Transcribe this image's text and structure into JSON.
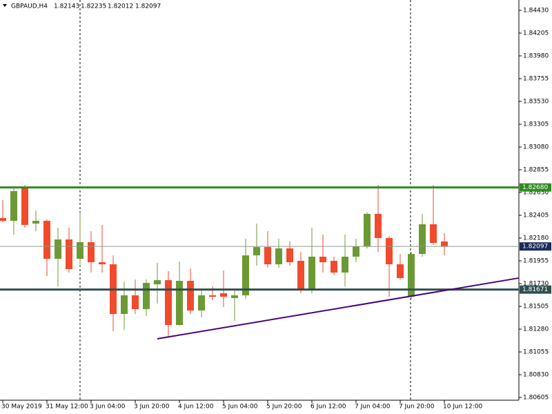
{
  "chart_data": {
    "type": "candlestick",
    "symbol": "GBPAUD,H4",
    "header_values": [
      1.82143,
      1.82235,
      1.82012,
      1.82097
    ],
    "up_color": "#6b9a35",
    "down_color": "#f24a2c",
    "categories": [
      "30 May 2019",
      null,
      null,
      null,
      "31 May 12:00",
      null,
      null,
      null,
      "3 Jun 04:00",
      null,
      null,
      null,
      "3 Jun 20:00",
      null,
      null,
      null,
      "4 Jun 12:00",
      null,
      null,
      null,
      "5 Jun 04:00",
      null,
      null,
      null,
      "5 Jun 20:00",
      null,
      null,
      null,
      "6 Jun 12:00",
      null,
      null,
      null,
      "7 Jun 04:00",
      null,
      null,
      null,
      "7 Jun 20:00",
      null,
      null,
      null,
      "10 Jun 12:00"
    ],
    "open": [
      1.82378,
      1.8235,
      1.82678,
      1.82323,
      1.8235,
      1.81975,
      1.82166,
      1.81975,
      1.82139,
      1.81941,
      1.81921,
      1.8143,
      1.81614,
      1.81478,
      1.81723,
      1.81764,
      1.81321,
      1.81757,
      1.81464,
      1.81614,
      1.81635,
      1.81587,
      1.81614,
      1.82009,
      1.82091,
      1.81921,
      1.82078,
      1.81955,
      1.81669,
      1.81996,
      1.81955,
      1.81839,
      1.81996,
      1.82098,
      1.82419,
      1.8218,
      1.81921,
      1.816,
      1.82023,
      1.82316,
      1.82146
    ],
    "high": [
      1.82555,
      1.82678,
      1.82705,
      1.82453,
      1.82364,
      1.82282,
      1.82282,
      1.82432,
      1.82248,
      1.8231,
      1.82009,
      1.8175,
      1.81771,
      1.81771,
      1.81935,
      1.81853,
      1.81948,
      1.8188,
      1.81669,
      1.81703,
      1.8186,
      1.81669,
      1.82173,
      1.82323,
      1.82248,
      1.82173,
      1.82146,
      1.82044,
      1.82282,
      1.82214,
      1.81996,
      1.82214,
      1.82173,
      1.82432,
      1.82705,
      1.822,
      1.82023,
      1.82044,
      1.82419,
      1.82705,
      1.82228
    ],
    "low": [
      1.82337,
      1.82214,
      1.82282,
      1.82248,
      1.81805,
      1.81703,
      1.81839,
      1.81907,
      1.81839,
      1.81839,
      1.8126,
      1.81273,
      1.8143,
      1.8141,
      1.81532,
      1.81205,
      1.81314,
      1.8143,
      1.81396,
      1.81566,
      1.81498,
      1.81362,
      1.8158,
      1.81907,
      1.81887,
      1.81887,
      1.81907,
      1.81635,
      1.81635,
      1.81839,
      1.81819,
      1.81703,
      1.81941,
      1.82078,
      1.82044,
      1.816,
      1.81771,
      1.8158,
      1.81996,
      1.82112,
      1.82009
    ],
    "close": [
      1.8235,
      1.82644,
      1.8231,
      1.8235,
      1.81975,
      1.82166,
      1.81873,
      1.82139,
      1.81941,
      1.81921,
      1.8143,
      1.81614,
      1.81478,
      1.81737,
      1.81764,
      1.81321,
      1.81757,
      1.81464,
      1.81614,
      1.816,
      1.816,
      1.81614,
      1.82009,
      1.82091,
      1.81921,
      1.82078,
      1.81941,
      1.81669,
      1.81996,
      1.81941,
      1.81839,
      1.81996,
      1.82098,
      1.82419,
      1.8218,
      1.81921,
      1.81785,
      1.82023,
      1.82316,
      1.82132,
      1.82097
    ],
    "ylim": [
      1.80578,
      1.84532
    ],
    "yticks": [
      {
        "value": 1.8443,
        "label": "1.84430"
      },
      {
        "value": 1.84205,
        "label": "1.84205"
      },
      {
        "value": 1.8398,
        "label": "1.83980"
      },
      {
        "value": 1.83755,
        "label": "1.83755"
      },
      {
        "value": 1.8353,
        "label": "1.83530"
      },
      {
        "value": 1.83305,
        "label": "1.83305"
      },
      {
        "value": 1.8308,
        "label": "1.83080"
      },
      {
        "value": 1.82855,
        "label": "1.82855"
      },
      {
        "value": 1.8263,
        "label": "1.82630"
      },
      {
        "value": 1.82405,
        "label": "1.82405"
      },
      {
        "value": 1.8218,
        "label": "1.82180"
      },
      {
        "value": 1.81955,
        "label": "1.81955"
      },
      {
        "value": 1.8173,
        "label": "1.81730"
      },
      {
        "value": 1.81505,
        "label": "1.81505"
      },
      {
        "value": 1.8128,
        "label": "1.81280"
      },
      {
        "value": 1.81055,
        "label": "1.81055"
      },
      {
        "value": 1.8083,
        "label": "1.80830"
      },
      {
        "value": 1.80605,
        "label": "1.80605"
      }
    ],
    "hlines": [
      {
        "value": 1.8268,
        "label": "1.82680",
        "color": "#2e8b22",
        "width": 3,
        "box": "#2e8b22"
      },
      {
        "value": 1.81671,
        "label": "1.81671",
        "color": "#2f4f4f",
        "width": 3,
        "box": "#2f4f4f"
      },
      {
        "value": 1.82097,
        "label": "1.82097",
        "color": "#8a9a8a",
        "width": 1,
        "box": "#1a2a5a"
      }
    ],
    "trendline": {
      "x": [
        14,
        46.75
      ],
      "values": [
        1.81185,
        1.81785
      ],
      "color": "#4b0082"
    }
  }
}
